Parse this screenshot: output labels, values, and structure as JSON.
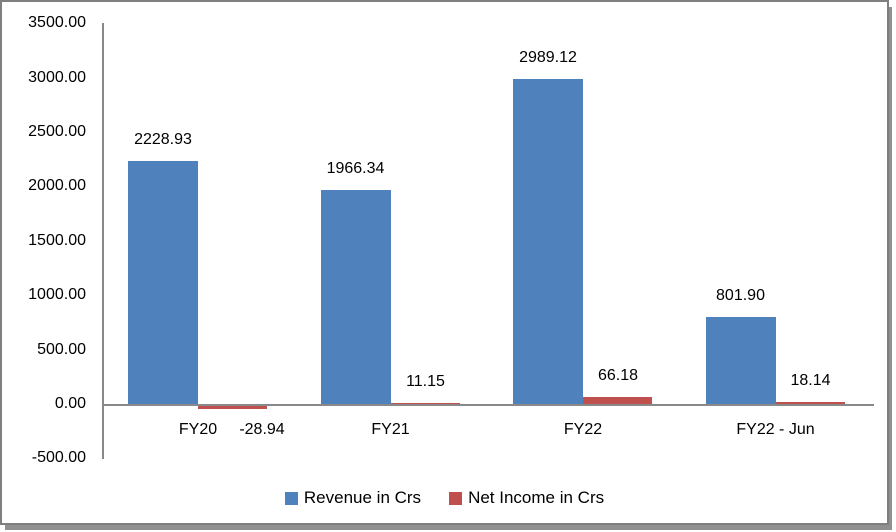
{
  "chart_data": {
    "type": "bar",
    "categories": [
      "FY20",
      "FY21",
      "FY22",
      "FY22 - Jun"
    ],
    "series": [
      {
        "name": "Revenue in Crs",
        "color": "#4F81BD",
        "values": [
          2228.93,
          1966.34,
          2989.12,
          801.9
        ]
      },
      {
        "name": "Net Income in Crs",
        "color": "#C0504D",
        "values": [
          -28.94,
          11.15,
          66.18,
          18.14
        ]
      }
    ],
    "data_labels": [
      [
        "2228.93",
        "1966.34",
        "2989.12",
        "801.90"
      ],
      [
        "-28.94",
        "11.15",
        "66.18",
        "18.14"
      ]
    ],
    "y_axis": {
      "ticks": [
        "3500.00",
        "3000.00",
        "2500.00",
        "2000.00",
        "1500.00",
        "1000.00",
        "500.00",
        "0.00",
        "-500.00"
      ],
      "min": -500,
      "max": 3500,
      "step": 500
    },
    "title": "",
    "xlabel": "",
    "ylabel": "",
    "grid": false,
    "legend_position": "bottom"
  },
  "colors": {
    "revenue": "#4F81BD",
    "net_income": "#C0504D",
    "axis_line": "#898989",
    "text": "#000000",
    "frame_border": "#7F7F7F",
    "background": "#FFFFFF"
  }
}
